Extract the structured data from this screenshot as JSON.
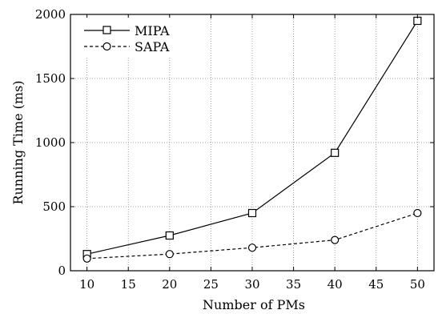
{
  "chart_data": {
    "type": "line",
    "title": "",
    "xlabel": "Number of PMs",
    "ylabel": "Running Time (ms)",
    "x": [
      10,
      20,
      30,
      40,
      50
    ],
    "xticks": [
      10,
      15,
      20,
      25,
      30,
      35,
      40,
      45,
      50
    ],
    "yticks": [
      0,
      500,
      1000,
      1500,
      2000
    ],
    "xlim": [
      8,
      52
    ],
    "ylim": [
      0,
      2000
    ],
    "grid": true,
    "legend_position": "top-left",
    "series": [
      {
        "name": "MIPA",
        "values": [
          130,
          275,
          450,
          920,
          1950
        ],
        "marker": "square",
        "line_style": "solid",
        "color": "#000000"
      },
      {
        "name": "SAPA",
        "values": [
          95,
          130,
          180,
          240,
          450
        ],
        "marker": "circle",
        "line_style": "dashed",
        "color": "#000000"
      }
    ]
  }
}
